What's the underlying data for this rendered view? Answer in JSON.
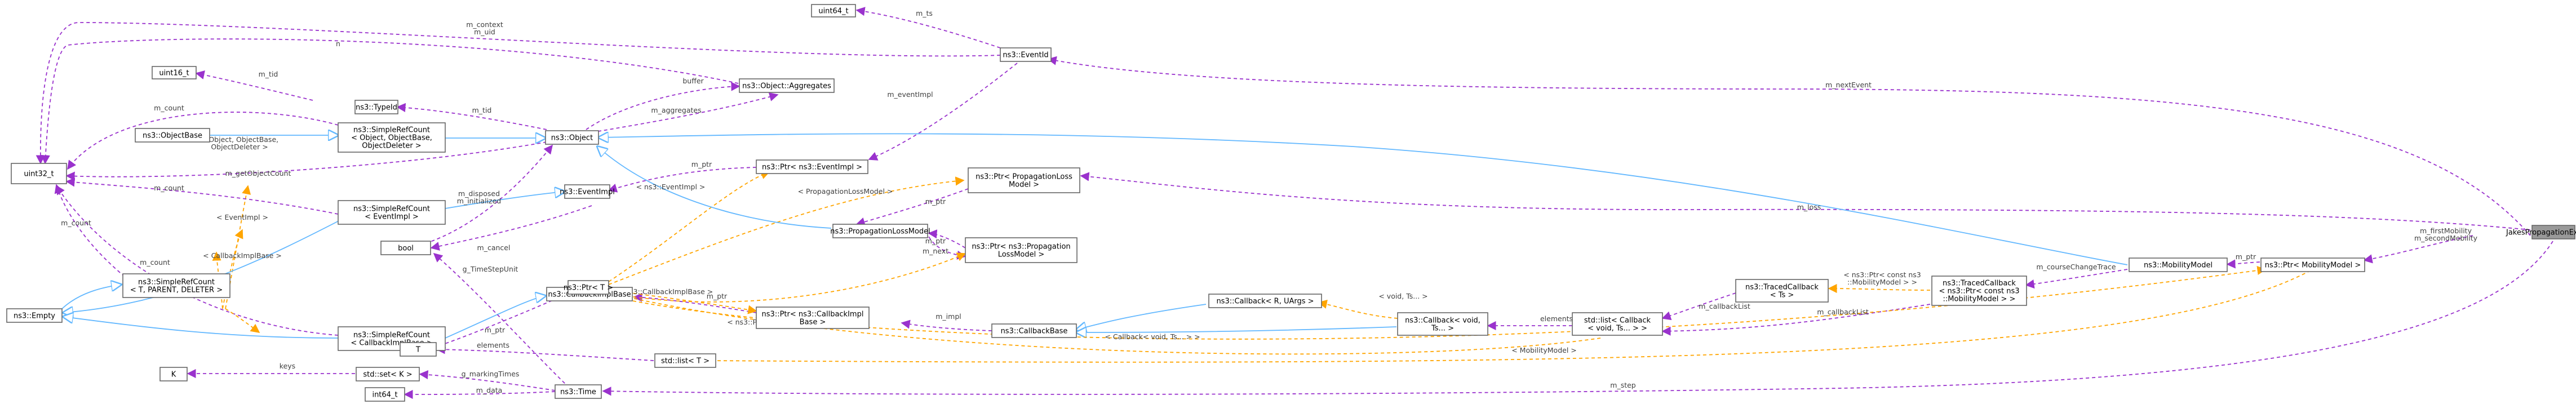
{
  "colors": {
    "usage_edge": "#9a32cd",
    "template_edge": "#ffa500",
    "inheritance_edge": "#63b8ff",
    "node_border": "#666666",
    "root_fill": "#999999"
  },
  "nodes": {
    "jakes": [
      "JakesPropagationExample"
    ],
    "uint64": [
      "uint64_t"
    ],
    "eventid": [
      "ns3::EventId"
    ],
    "uint16": [
      "uint16_t"
    ],
    "aggregates": [
      "ns3::Object::Aggregates"
    ],
    "typeid": [
      "ns3::TypeId"
    ],
    "objectbase": [
      "ns3::ObjectBase"
    ],
    "src_object": [
      "ns3::SimpleRefCount",
      "< Object, ObjectBase,",
      "ObjectDeleter >"
    ],
    "object": [
      "ns3::Object"
    ],
    "uint32": [
      "uint32_t"
    ],
    "eventimpl": [
      "ns3::EventImpl"
    ],
    "src_eventimpl": [
      "ns3::SimpleRefCount",
      "< EventImpl >"
    ],
    "ptr_eventimpl": [
      "ns3::Ptr< ns3::EventImpl >"
    ],
    "ptr_plm_top": [
      "ns3::Ptr< PropagationLoss",
      "Model >"
    ],
    "src_generic": [
      "ns3::SimpleRefCount",
      "< T, PARENT, DELETER >"
    ],
    "plm": [
      "ns3::PropagationLossModel"
    ],
    "ptr_plm_mid": [
      "ns3::Ptr< ns3::Propagation",
      "LossModel >"
    ],
    "bool": [
      "bool"
    ],
    "callbackimplbase": [
      "ns3::CallbackImplBase"
    ],
    "ptr_cib": [
      "ns3::Ptr< ns3::CallbackImpl",
      "Base >"
    ],
    "callback_r_uargs": [
      "ns3::Callback< R, UArgs >"
    ],
    "callbackbase": [
      "ns3::CallbackBase"
    ],
    "empty": [
      "ns3::Empty"
    ],
    "src_cib": [
      "ns3::SimpleRefCount",
      "< CallbackImplBase >"
    ],
    "ptr_t": [
      "ns3::Ptr< T >"
    ],
    "callback_void": [
      "ns3::Callback< void,",
      "Ts... >"
    ],
    "list_callback": [
      "std::list< Callback",
      "< void, Ts... > >"
    ],
    "traced_cb": [
      "ns3::TracedCallback",
      "< Ts >"
    ],
    "traced_cb_mm": [
      "ns3::TracedCallback",
      "< ns3::Ptr< const ns3",
      "::MobilityModel > >"
    ],
    "mobilitymodel": [
      "ns3::MobilityModel"
    ],
    "ptr_mm": [
      "ns3::Ptr< MobilityModel >"
    ],
    "t": [
      "T"
    ],
    "list_t": [
      "std::list< T >"
    ],
    "k": [
      "K"
    ],
    "set_k": [
      "std::set< K >"
    ],
    "int64": [
      "int64_t"
    ],
    "time": [
      "ns3::Time"
    ]
  },
  "edge_labels": {
    "m_ts": [
      "m_ts"
    ],
    "context_uid": [
      "m_context",
      "m_uid"
    ],
    "n": [
      "n"
    ],
    "m_nextEvent": [
      "m_nextEvent"
    ],
    "buffer": [
      "buffer"
    ],
    "m_tid_top": [
      "m_tid"
    ],
    "m_eventImpl": [
      "m_eventImpl"
    ],
    "m_count_1": [
      "m_count"
    ],
    "m_tid_obj": [
      "m_tid"
    ],
    "m_aggregates": [
      "m_aggregates"
    ],
    "tpl_object": [
      "< Object, ObjectBase,",
      "ObjectDeleter >"
    ],
    "m_getObjectCount": [
      "m_getObjectCount"
    ],
    "m_ptr_ei": [
      "m_ptr"
    ],
    "m_count_2": [
      "m_count"
    ],
    "disposed": [
      "m_disposed",
      "m_initialized"
    ],
    "tpl_eventimpl_ptr": [
      "< ns3::EventImpl >"
    ],
    "m_loss": [
      "m_loss"
    ],
    "tpl_plm": [
      "< PropagationLossModel >"
    ],
    "m_ptr_plm": [
      "m_ptr"
    ],
    "tpl_eventimpl_src": [
      "< EventImpl >"
    ],
    "m_count_3": [
      "m_count"
    ],
    "m_cancel": [
      "m_cancel"
    ],
    "m_next": [
      "m_next"
    ],
    "m_ptr_mid": [
      "m_ptr"
    ],
    "m_count_4": [
      "m_count"
    ],
    "tpl_cib_src": [
      "< CallbackImplBase >"
    ],
    "m_ptr_cib": [
      "m_ptr"
    ],
    "g_timestep": [
      "g_TimeStepUnit"
    ],
    "tpl_cib_ptr": [
      "< ns3::CallbackImplBase >"
    ],
    "m_impl": [
      "m_impl"
    ],
    "tpl_plm_ptr": [
      "< ns3::PropagationLossModel >"
    ],
    "tpl_void": [
      "< void, Ts... >"
    ],
    "elements_cb": [
      "elements"
    ],
    "m_callbackList_1": [
      "m_callbackList"
    ],
    "tpl_traced": [
      "< ns3::Ptr< const ns3",
      "::MobilityModel > >"
    ],
    "m_callbackList_2": [
      "m_callbackList"
    ],
    "m_courseChangeTrace": [
      "m_courseChangeTrace"
    ],
    "m_ptr_mm": [
      "m_ptr"
    ],
    "m_firstMobility": [
      "m_firstMobility",
      "m_secondMobility"
    ],
    "tpl_cb_list": [
      "< Callback< void, Ts... > >"
    ],
    "m_ptr_t": [
      "m_ptr"
    ],
    "elements_t": [
      "elements"
    ],
    "tpl_mm": [
      "< MobilityModel >"
    ],
    "keys": [
      "keys"
    ],
    "g_markingTimes": [
      "g_markingTimes"
    ],
    "m_data": [
      "m_data"
    ],
    "m_step": [
      "m_step"
    ]
  }
}
